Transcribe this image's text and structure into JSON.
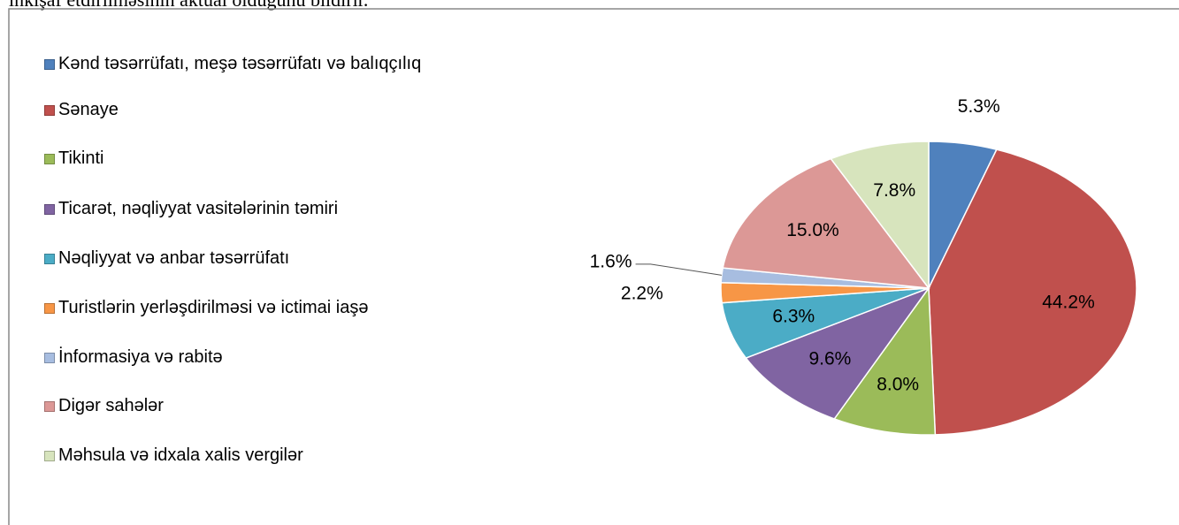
{
  "document_text": "inkişaf etdirilməsinin aktual olduğunu bildirir.",
  "chart_data": {
    "type": "pie",
    "categories": [
      "Kənd təsərrüfatı, meşə  təsərrüfatı və balıqçılıq",
      "Sənaye",
      "Tikinti",
      "Ticarət, nəqliyyat vasitələrinin təmiri",
      "Nəqliyyat və anbar təsərrüfatı",
      "Turistlərin yerləşdirilməsi və ictimai iaşə",
      "İnformasiya və rabitə",
      "Digər sahələr",
      "Məhsula və idxala xalis vergilər"
    ],
    "values": [
      5.3,
      44.2,
      8.0,
      9.6,
      6.3,
      2.2,
      1.6,
      15.0,
      7.8
    ],
    "value_labels": [
      "5.3%",
      "44.2%",
      "8.0%",
      "9.6%",
      "6.3%",
      "2.2%",
      "1.6%",
      "15.0%",
      "7.8%"
    ],
    "colors": [
      "#4f81bd",
      "#c0504d",
      "#9bbb59",
      "#8064a2",
      "#4bacc6",
      "#f79646",
      "#a7bde0",
      "#dc9896",
      "#d7e4bd"
    ],
    "legend": "left"
  }
}
